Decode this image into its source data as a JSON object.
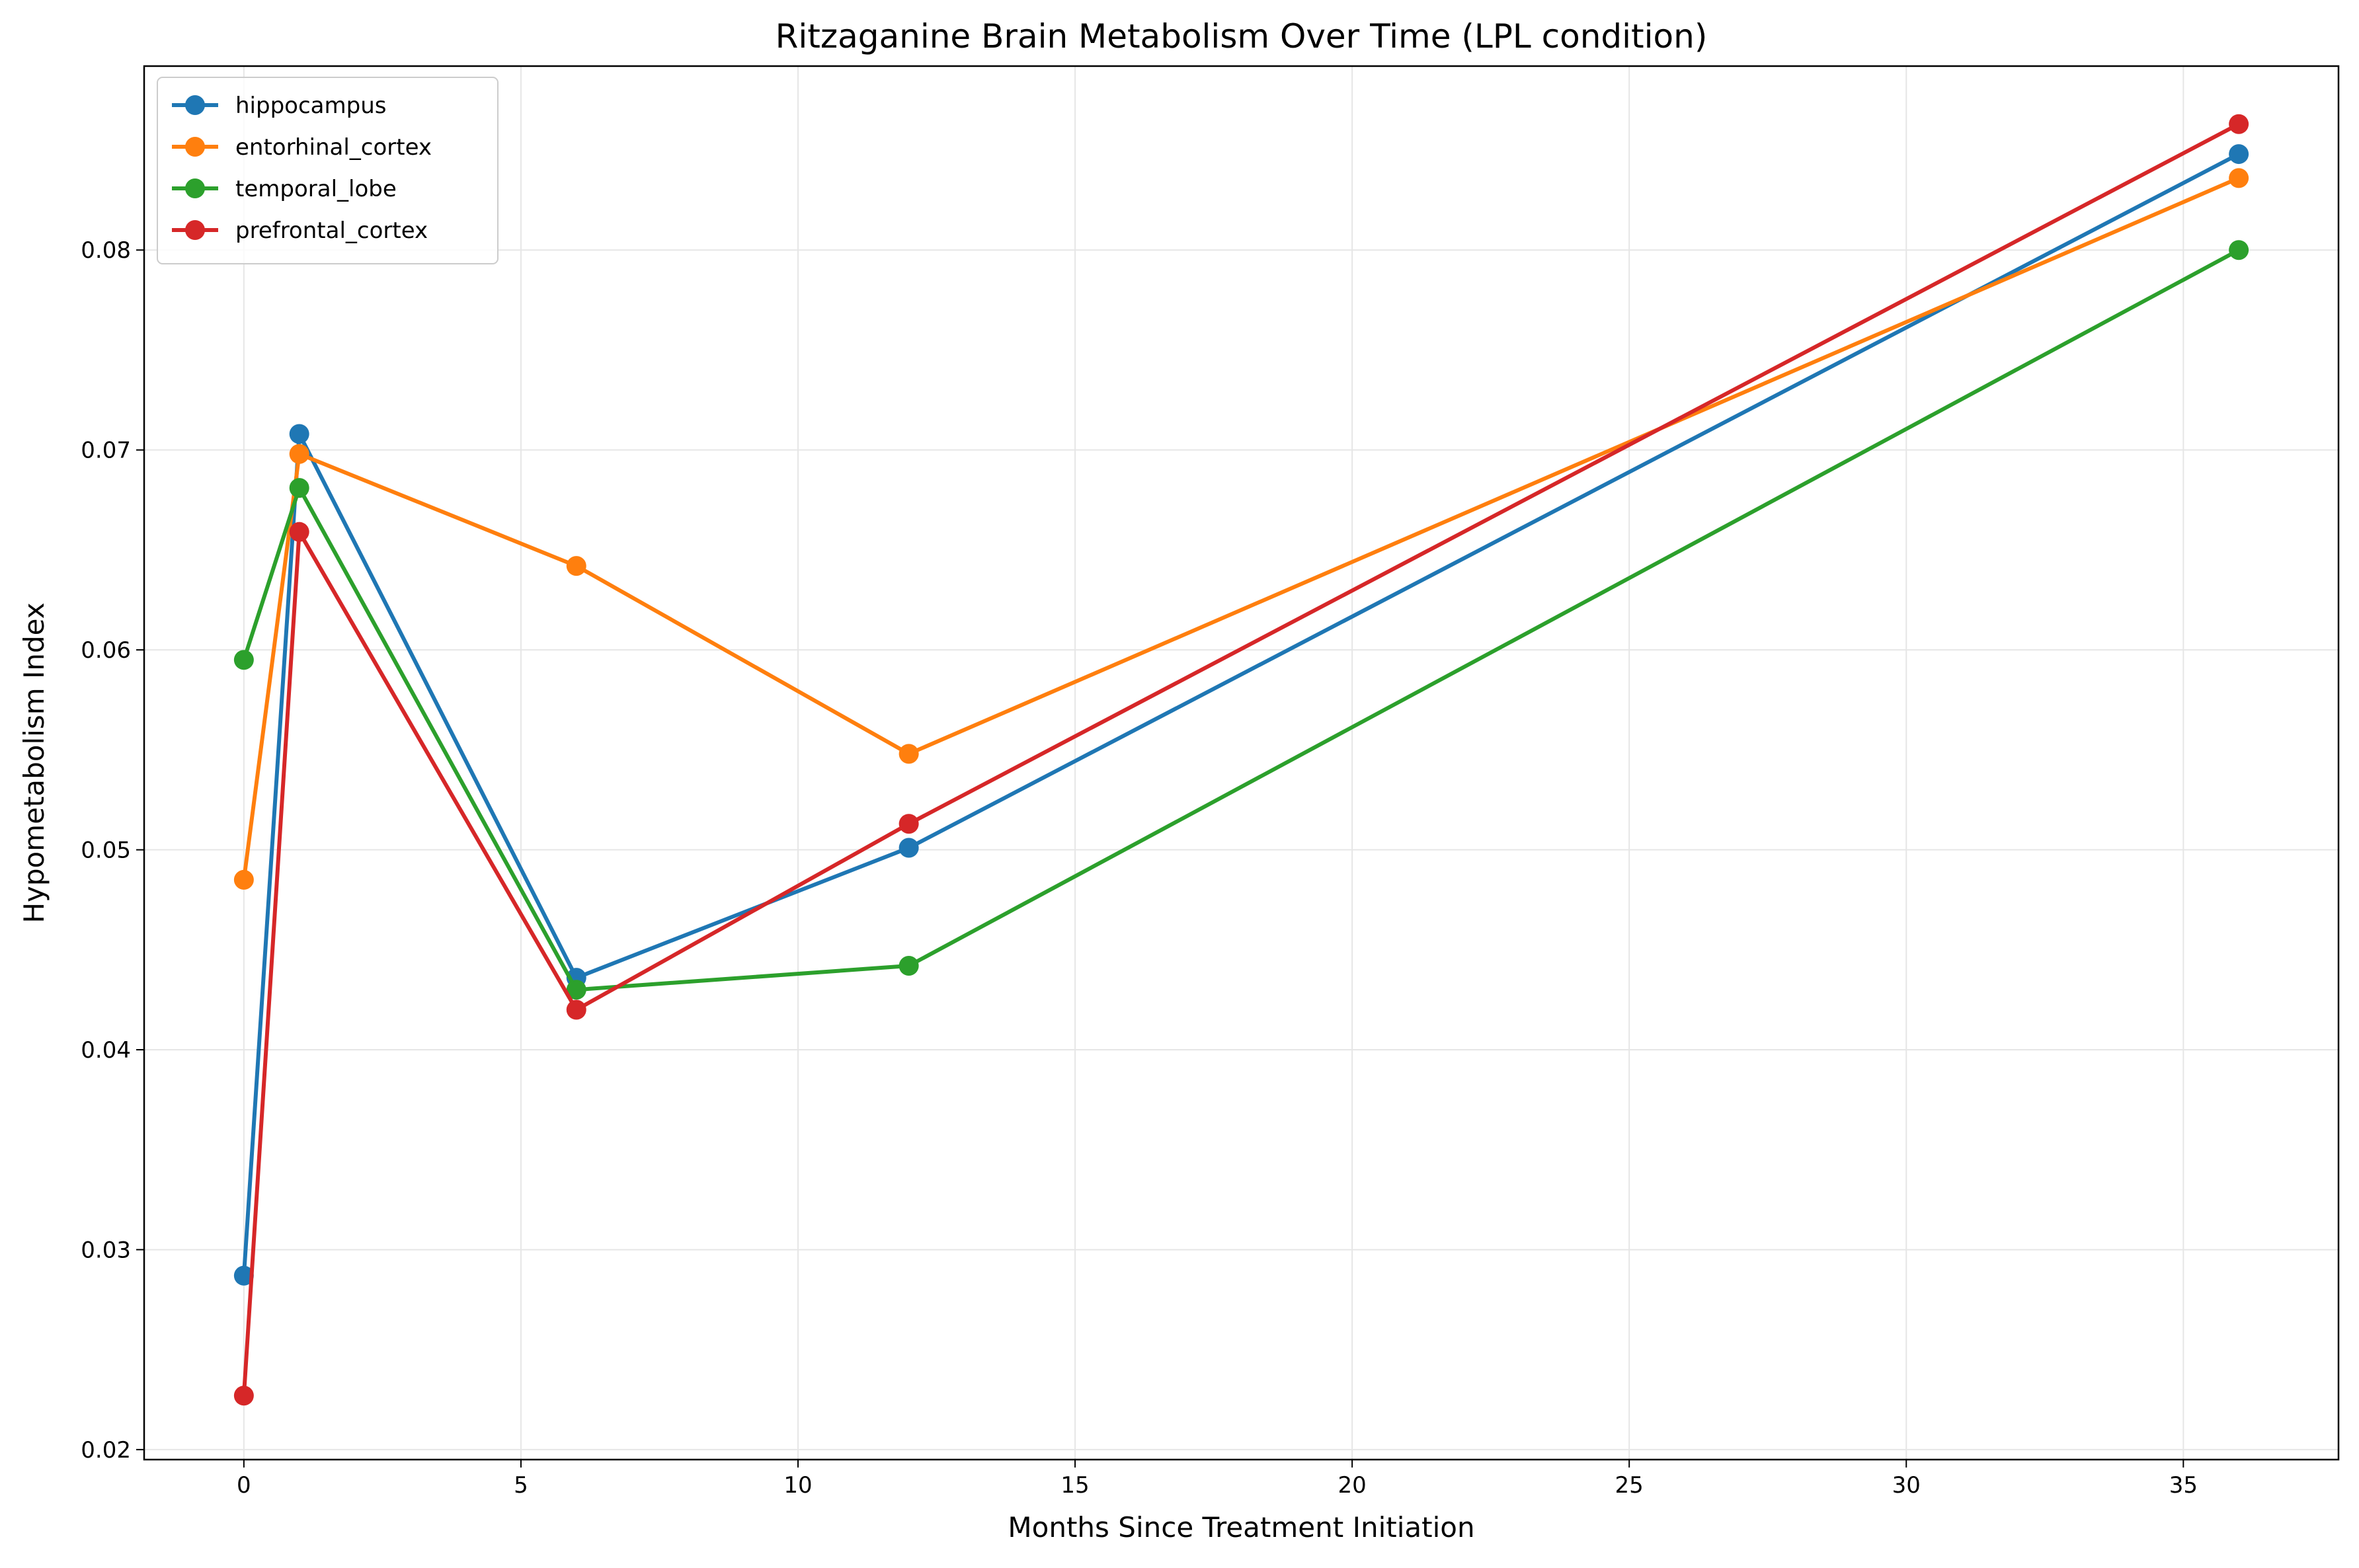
{
  "chart_data": {
    "type": "line",
    "title": "Ritzaganine Brain Metabolism Over Time (LPL condition)",
    "xlabel": "Months Since Treatment Initiation",
    "ylabel": "Hypometabolism Index",
    "xlim": [
      -1.8,
      37.8
    ],
    "ylim": [
      0.0195,
      0.0892
    ],
    "xticks": [
      0,
      5,
      10,
      15,
      20,
      25,
      30,
      35
    ],
    "xtick_labels": [
      "0",
      "5",
      "10",
      "15",
      "20",
      "25",
      "30",
      "35"
    ],
    "yticks": [
      0.02,
      0.03,
      0.04,
      0.05,
      0.06,
      0.07,
      0.08
    ],
    "ytick_labels": [
      "0.02",
      "0.03",
      "0.04",
      "0.05",
      "0.06",
      "0.07",
      "0.08"
    ],
    "grid": true,
    "legend_position": "top-left",
    "x": [
      0,
      1,
      6,
      12,
      36
    ],
    "series": [
      {
        "name": "hippocampus",
        "color": "#1f77b4",
        "values": [
          0.0287,
          0.0708,
          0.0436,
          0.0501,
          0.0848
        ]
      },
      {
        "name": "entorhinal_cortex",
        "color": "#ff7f0e",
        "values": [
          0.0485,
          0.0698,
          0.0642,
          0.0548,
          0.0836
        ]
      },
      {
        "name": "temporal_lobe",
        "color": "#2ca02c",
        "values": [
          0.0595,
          0.0681,
          0.043,
          0.0442,
          0.08
        ]
      },
      {
        "name": "prefrontal_cortex",
        "color": "#d62728",
        "values": [
          0.0227,
          0.0659,
          0.042,
          0.0513,
          0.0863
        ]
      }
    ]
  }
}
